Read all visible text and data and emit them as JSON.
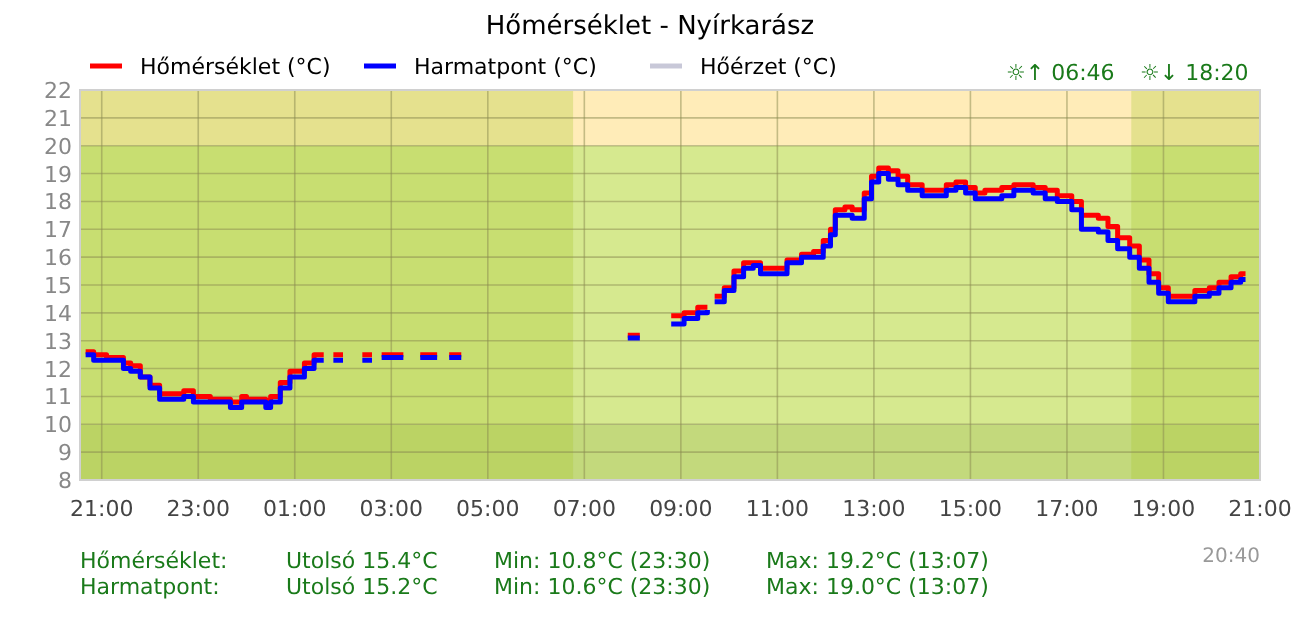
{
  "chart_data": {
    "type": "step",
    "title": "Hőmérséklet - Nyírkarász",
    "xlim": [
      "2000-01-01T20:33",
      "2000-01-02T21:00"
    ],
    "ylim": [
      8,
      22
    ],
    "xticks": [
      {
        "value": "2000-01-01T21:00",
        "label": "21:00"
      },
      {
        "value": "2000-01-01T23:00",
        "label": "23:00"
      },
      {
        "value": "2000-01-02T01:00",
        "label": "01:00"
      },
      {
        "value": "2000-01-02T03:00",
        "label": "03:00"
      },
      {
        "value": "2000-01-02T05:00",
        "label": "05:00"
      },
      {
        "value": "2000-01-02T07:00",
        "label": "07:00"
      },
      {
        "value": "2000-01-02T09:00",
        "label": "09:00"
      },
      {
        "value": "2000-01-02T11:00",
        "label": "11:00"
      },
      {
        "value": "2000-01-02T13:00",
        "label": "13:00"
      },
      {
        "value": "2000-01-02T15:00",
        "label": "15:00"
      },
      {
        "value": "2000-01-02T17:00",
        "label": "17:00"
      },
      {
        "value": "2000-01-02T19:00",
        "label": "19:00"
      },
      {
        "value": "2000-01-02T21:00",
        "label": "21:00"
      }
    ],
    "yticks": [
      8,
      9,
      10,
      11,
      12,
      13,
      14,
      15,
      16,
      17,
      18,
      19,
      20,
      21,
      22
    ],
    "grid": true,
    "legend": "top left",
    "bands": [
      {
        "axis": "y",
        "from": 10,
        "to": 20,
        "color": "#d6e98f"
      },
      {
        "axis": "y",
        "from": 8,
        "to": 10,
        "color": "#c3d97c"
      },
      {
        "axis": "y",
        "from": 20,
        "to": 22,
        "color": "#ffecb8"
      },
      {
        "axis": "x",
        "from": "2000-01-01T20:33",
        "to": "2000-01-02T06:46",
        "color": "#a8c830"
      },
      {
        "axis": "x",
        "from": "2000-01-02T18:20",
        "to": "2000-01-02T21:00",
        "color": "#a8c830"
      }
    ],
    "x": [
      "2000-01-01T20:40",
      "2000-01-01T20:50",
      "2000-01-01T21:06",
      "2000-01-01T21:27",
      "2000-01-01T21:36",
      "2000-01-01T21:48",
      "2000-01-01T22:00",
      "2000-01-01T22:12",
      "2000-01-01T22:42",
      "2000-01-01T22:54",
      "2000-01-01T23:15",
      "2000-01-01T23:40",
      "2000-01-01T23:54",
      "2000-01-02T00:00",
      "2000-01-02T00:24",
      "2000-01-02T00:30",
      "2000-01-02T00:42",
      "2000-01-02T00:54",
      "2000-01-02T01:12",
      "2000-01-02T01:24",
      "2000-01-02T01:36",
      "2000-01-02T01:42",
      "2000-01-02T01:48",
      "2000-01-02T02:00",
      "2000-01-02T02:06",
      "2000-01-02T02:24",
      "2000-01-02T02:36",
      "2000-01-02T02:42",
      "2000-01-02T02:48",
      "2000-01-02T03:15",
      "2000-01-02T03:21",
      "2000-01-02T03:36",
      "2000-01-02T03:57",
      "2000-01-02T04:03",
      "2000-01-02T04:12",
      "2000-01-02T04:27",
      "2000-01-02T04:33",
      "2000-01-02T07:54",
      "2000-01-02T08:09",
      "2000-01-02T08:15",
      "2000-01-02T08:48",
      "2000-01-02T09:04",
      "2000-01-02T09:21",
      "2000-01-02T09:33",
      "2000-01-02T09:36",
      "2000-01-02T09:42",
      "2000-01-02T09:54",
      "2000-01-02T10:06",
      "2000-01-02T10:18",
      "2000-01-02T10:30",
      "2000-01-02T10:39",
      "2000-01-02T11:00",
      "2000-01-02T11:12",
      "2000-01-02T11:30",
      "2000-01-02T11:45",
      "2000-01-02T11:57",
      "2000-01-02T12:06",
      "2000-01-02T12:12",
      "2000-01-02T12:24",
      "2000-01-02T12:33",
      "2000-01-02T12:48",
      "2000-01-02T12:57",
      "2000-01-02T13:06",
      "2000-01-02T13:18",
      "2000-01-02T13:30",
      "2000-01-02T13:42",
      "2000-01-02T14:00",
      "2000-01-02T14:21",
      "2000-01-02T14:30",
      "2000-01-02T14:42",
      "2000-01-02T14:54",
      "2000-01-02T15:06",
      "2000-01-02T15:18",
      "2000-01-02T15:39",
      "2000-01-02T15:54",
      "2000-01-02T16:18",
      "2000-01-02T16:33",
      "2000-01-02T16:48",
      "2000-01-02T17:06",
      "2000-01-02T17:18",
      "2000-01-02T17:39",
      "2000-01-02T17:51",
      "2000-01-02T18:03",
      "2000-01-02T18:18",
      "2000-01-02T18:30",
      "2000-01-02T18:42",
      "2000-01-02T18:54",
      "2000-01-02T19:06",
      "2000-01-02T19:27",
      "2000-01-02T19:39",
      "2000-01-02T19:57",
      "2000-01-02T20:09",
      "2000-01-02T20:24",
      "2000-01-02T20:36",
      "2000-01-02T20:42"
    ],
    "series": [
      {
        "name": "Hőmérséklet (°C)",
        "color": "#ff0000",
        "values": [
          12.6,
          12.5,
          12.4,
          12.2,
          12.1,
          11.7,
          11.4,
          11.1,
          11.2,
          11.0,
          10.9,
          10.8,
          11.0,
          10.9,
          10.8,
          11.0,
          11.5,
          11.9,
          12.2,
          12.5,
          12.5,
          null,
          12.5,
          12.5,
          null,
          12.5,
          12.5,
          null,
          12.5,
          12.5,
          null,
          12.5,
          12.5,
          null,
          12.5,
          12.5,
          null,
          13.2,
          13.2,
          null,
          13.9,
          14.0,
          14.2,
          14.2,
          null,
          14.6,
          14.9,
          15.5,
          15.8,
          15.8,
          15.6,
          15.6,
          15.9,
          16.1,
          16.2,
          16.6,
          17.0,
          17.7,
          17.8,
          17.7,
          18.3,
          18.9,
          19.2,
          19.1,
          18.9,
          18.6,
          18.4,
          18.4,
          18.6,
          18.7,
          18.5,
          18.3,
          18.4,
          18.5,
          18.6,
          18.5,
          18.4,
          18.2,
          18.0,
          17.5,
          17.4,
          17.1,
          16.7,
          16.4,
          15.9,
          15.4,
          14.9,
          14.6,
          14.6,
          14.8,
          14.9,
          15.1,
          15.3,
          15.4,
          15.4
        ]
      },
      {
        "name": "Harmatpont (°C)",
        "color": "#0000ff",
        "values": [
          12.5,
          12.3,
          12.3,
          12.0,
          11.9,
          11.7,
          11.3,
          10.9,
          11.0,
          10.8,
          10.8,
          10.6,
          10.8,
          10.8,
          10.6,
          10.8,
          11.3,
          11.7,
          12.0,
          12.3,
          12.3,
          null,
          12.3,
          12.3,
          null,
          12.3,
          12.3,
          null,
          12.4,
          12.4,
          null,
          12.4,
          12.4,
          null,
          12.4,
          12.4,
          null,
          13.1,
          13.1,
          null,
          13.6,
          13.8,
          14.0,
          14.1,
          null,
          14.4,
          14.8,
          15.3,
          15.6,
          15.7,
          15.4,
          15.4,
          15.8,
          16.0,
          16.0,
          16.4,
          16.8,
          17.5,
          17.5,
          17.4,
          18.1,
          18.7,
          19.0,
          18.8,
          18.6,
          18.4,
          18.2,
          18.2,
          18.4,
          18.5,
          18.3,
          18.1,
          18.1,
          18.2,
          18.4,
          18.3,
          18.1,
          18.0,
          17.7,
          17.0,
          16.9,
          16.6,
          16.3,
          16.0,
          15.6,
          15.1,
          14.7,
          14.4,
          14.4,
          14.6,
          14.7,
          14.9,
          15.1,
          15.2,
          15.2
        ]
      },
      {
        "name": "Hőérzet (°C)",
        "color": "#c8c8d8",
        "values": [
          null,
          null,
          null,
          null,
          null,
          null,
          null,
          null,
          null,
          null,
          null,
          null,
          null,
          null,
          null,
          null,
          null,
          null,
          null,
          null,
          null,
          null,
          null,
          null,
          null,
          null,
          null,
          null,
          null,
          null,
          null,
          null,
          null,
          null,
          null,
          null,
          null,
          null,
          null,
          null,
          null,
          null,
          null,
          null,
          null,
          null,
          null,
          null,
          null,
          null,
          null,
          null,
          null,
          null,
          null,
          null,
          null,
          null,
          null,
          null,
          null,
          null,
          null,
          null,
          null,
          null,
          null,
          null,
          null,
          null,
          null,
          null,
          null,
          null,
          null,
          null,
          null,
          null,
          null,
          null,
          null,
          null,
          null,
          null,
          null,
          null,
          null,
          null,
          null,
          null,
          null,
          null,
          null,
          null,
          null
        ]
      }
    ],
    "annotations": [
      "☼↑ 06:46",
      "☼↓ 18:20",
      "Hőmérséklet:",
      "Utolsó 15.4°C",
      "Min: 10.8°C (23:30)",
      "Max: 19.2°C (13:07)",
      "Harmatpont:",
      "Utolsó 15.2°C",
      "Min: 10.6°C (23:30)",
      "Max: 19.0°C (13:07)",
      "20:40"
    ]
  }
}
